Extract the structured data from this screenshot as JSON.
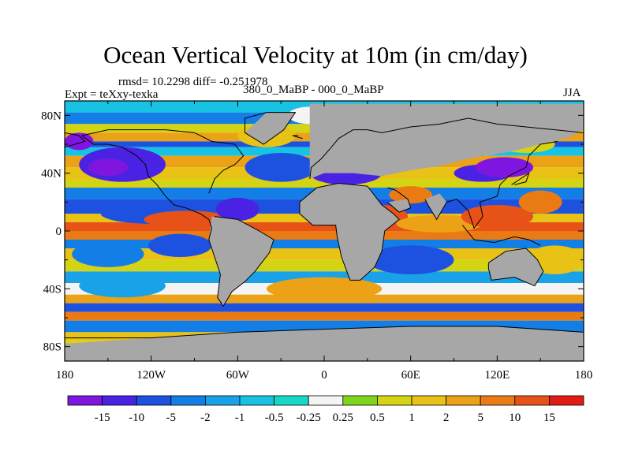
{
  "title": "Ocean Vertical Velocity at 10m (in cm/day)",
  "stats": "rmsd= 10.2298 diff= -0.251978",
  "experiment": "Expt = teXxy-texka",
  "comparison": "380_0_MaBP - 000_0_MaBP",
  "season": "JJA",
  "lat_labels": [
    "80N",
    "40N",
    "0",
    "40S",
    "80S"
  ],
  "lon_labels": [
    "180",
    "120W",
    "60W",
    "0",
    "60E",
    "120E",
    "180"
  ],
  "colorbar": {
    "labels": [
      "-15",
      "-10",
      "-5",
      "-2",
      "-1",
      "-0.5",
      "-0.25",
      "0.25",
      "0.5",
      "1",
      "2",
      "5",
      "10",
      "15"
    ],
    "colors": [
      "#7f16e0",
      "#4a22e4",
      "#1d52e0",
      "#127ee6",
      "#1aa2e8",
      "#17c2e2",
      "#16d8c4",
      "#f4f4f4",
      "#7ed61c",
      "#d4d414",
      "#e8c214",
      "#eba216",
      "#ea7a14",
      "#e65218",
      "#e21c14"
    ]
  },
  "land_color": "#a7a7a7",
  "chart_data": {
    "type": "heatmap",
    "title": "Ocean Vertical Velocity at 10m (in cm/day)",
    "lon_range": [
      -180,
      180
    ],
    "lat_range": [
      -90,
      90
    ],
    "levels": [
      -15,
      -10,
      -5,
      -2,
      -1,
      -0.5,
      -0.25,
      0.25,
      0.5,
      1,
      2,
      5,
      10,
      15
    ]
  }
}
